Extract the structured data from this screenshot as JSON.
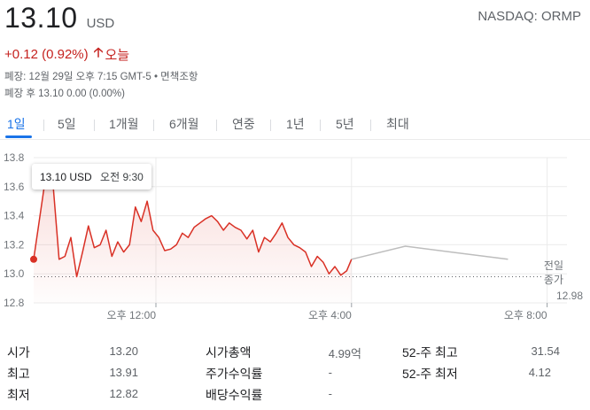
{
  "header": {
    "price": "13.10",
    "currency": "USD",
    "exchange_ticker": "NASDAQ: ORMP",
    "change": "+0.12 (0.92%)",
    "change_arrow": "arrow-up-icon",
    "change_period": "오늘",
    "close_info": "폐장: 12월 29일 오후 7:15 GMT-5 • 면책조항",
    "after_hours": "폐장 후 13.10 0.00 (0.00%)",
    "change_color": "#c5221f"
  },
  "tabs": [
    {
      "label": "1일",
      "active": true
    },
    {
      "label": "5일"
    },
    {
      "label": "1개월"
    },
    {
      "label": "6개월"
    },
    {
      "label": "연중"
    },
    {
      "label": "1년"
    },
    {
      "label": "5년"
    },
    {
      "label": "최대"
    }
  ],
  "tooltip": {
    "price": "13.10 USD",
    "time": "오전 9:30"
  },
  "chart_data": {
    "type": "line",
    "y_ticks": [
      "13.8",
      "13.6",
      "13.4",
      "13.2",
      "13.0",
      "12.8"
    ],
    "ylim": [
      12.8,
      13.8
    ],
    "x_ticks": [
      "오후 12:00",
      "오후 4:00",
      "오후 8:00"
    ],
    "previous_close_label_1": "전일",
    "previous_close_label_2": "종가",
    "previous_close_value": "12.98",
    "previous_close": 12.98,
    "line_color": "#d93025",
    "extended_color": "#bdbdbd",
    "series": [
      {
        "x": [
          9.5,
          9.78,
          9.9,
          10.02,
          10.14,
          10.26,
          10.38,
          10.5,
          10.62,
          10.74,
          10.86,
          10.98,
          11.1,
          11.22,
          11.34,
          11.46,
          11.58,
          11.7,
          11.82,
          11.94,
          12.06,
          12.18,
          12.3,
          12.42,
          12.54,
          12.66,
          12.78,
          12.9,
          13.02,
          13.14,
          13.26,
          13.38,
          13.5,
          13.62,
          13.74,
          13.86,
          13.98,
          14.1,
          14.22,
          14.34,
          14.46,
          14.58,
          14.7,
          14.82,
          14.94,
          15.06,
          15.18,
          15.3,
          15.42,
          15.54,
          15.66,
          15.78,
          15.9,
          16.0
        ],
        "values": [
          13.1,
          13.75,
          13.6,
          13.1,
          13.12,
          13.25,
          12.98,
          13.15,
          13.33,
          13.18,
          13.2,
          13.3,
          13.12,
          13.22,
          13.15,
          13.2,
          13.46,
          13.36,
          13.5,
          13.3,
          13.25,
          13.16,
          13.17,
          13.2,
          13.28,
          13.25,
          13.32,
          13.35,
          13.38,
          13.4,
          13.36,
          13.3,
          13.35,
          13.32,
          13.3,
          13.24,
          13.3,
          13.15,
          13.25,
          13.22,
          13.28,
          13.35,
          13.25,
          13.2,
          13.18,
          13.15,
          13.05,
          13.12,
          13.08,
          13.0,
          13.05,
          12.99,
          13.02,
          13.1
        ]
      }
    ],
    "extended": {
      "x": [
        16.0,
        17.1,
        19.2
      ],
      "values": [
        13.1,
        13.19,
        13.1
      ]
    }
  },
  "stats": {
    "col1": [
      {
        "label": "시가",
        "value": "13.20"
      },
      {
        "label": "최고",
        "value": "13.91"
      },
      {
        "label": "최저",
        "value": "12.82"
      }
    ],
    "col2": [
      {
        "label": "시가총액",
        "value": "4.99억"
      },
      {
        "label": "주가수익률",
        "value": "-"
      },
      {
        "label": "배당수익률",
        "value": "-"
      }
    ],
    "col3": [
      {
        "label": "52-주 최고",
        "value": "31.54"
      },
      {
        "label": "52-주 최저",
        "value": "4.12"
      }
    ]
  }
}
